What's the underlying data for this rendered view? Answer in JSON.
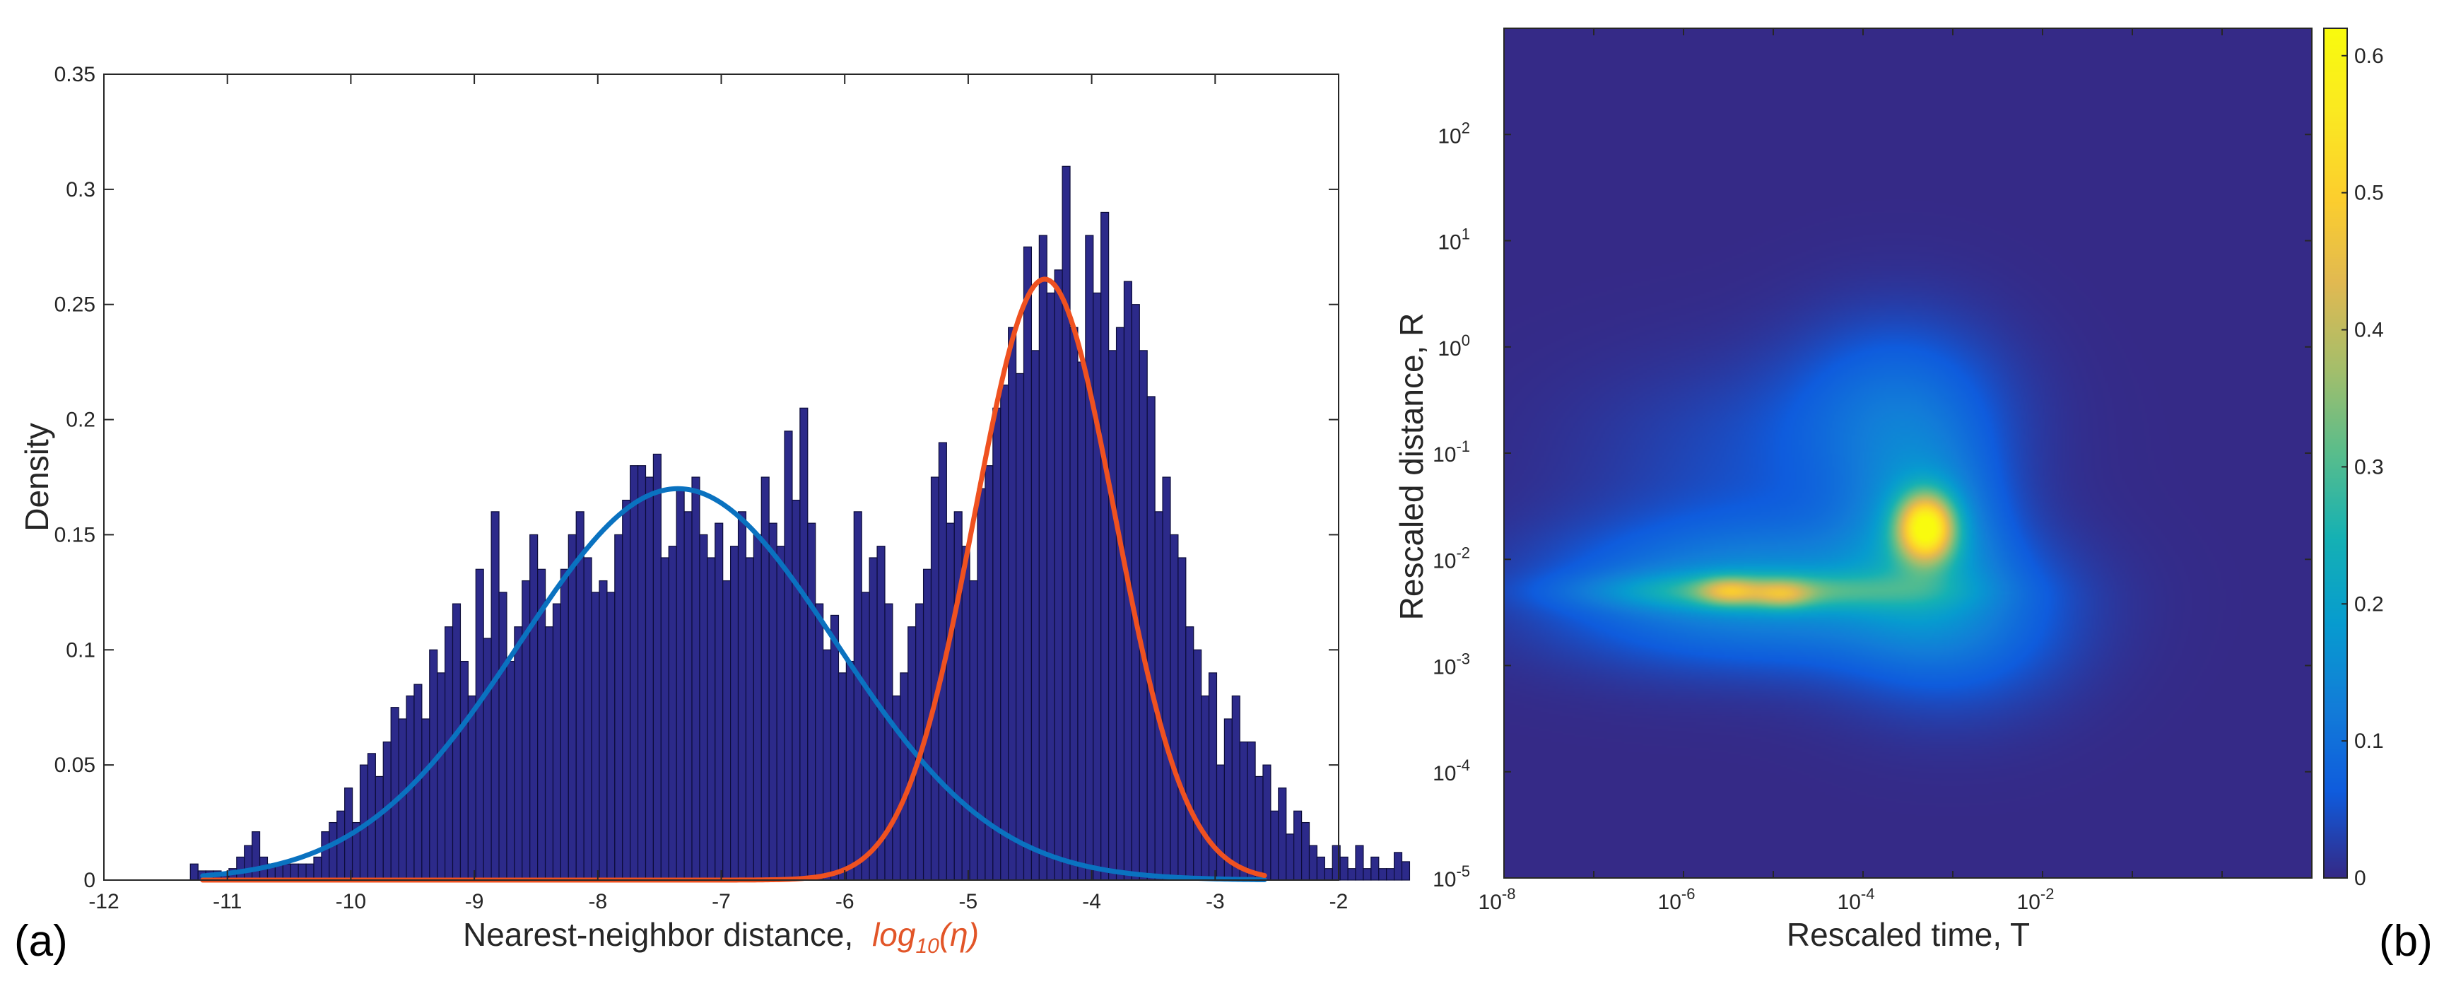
{
  "figure": {
    "panel_a_label": "(a)",
    "panel_b_label": "(b)"
  },
  "colors": {
    "bars_fill": "#2c2a8a",
    "bars_edge": "#0c0c3a",
    "fit_low": "#0a72c0",
    "fit_high": "#ef5120",
    "heatmap_bg": "#352a87"
  },
  "chart_data": [
    {
      "type": "bar",
      "title": "",
      "xlabel": "Nearest-neighbor distance, ",
      "xlabel_math": "log10(η)",
      "xlabel_math_base": "log",
      "xlabel_math_sub": "10",
      "xlabel_math_arg": "(η)",
      "ylabel": "Density",
      "xlim": [
        -12,
        -2
      ],
      "ylim": [
        0,
        0.35
      ],
      "xticks": [
        -12,
        -11,
        -10,
        -9,
        -8,
        -7,
        -6,
        -5,
        -4,
        -3,
        -2
      ],
      "xtick_labels": [
        "-12",
        "-11",
        "-10",
        "-9",
        "-8",
        "-7",
        "-6",
        "-5",
        "-4",
        "-3",
        "-2"
      ],
      "yticks": [
        0,
        0.05,
        0.1,
        0.15,
        0.2,
        0.25,
        0.3,
        0.35
      ],
      "ytick_labels": [
        "0",
        "0.05",
        "0.1",
        "0.15",
        "0.2",
        "0.25",
        "0.3",
        "0.35"
      ],
      "bin_start": -11.3,
      "bin_width": 0.0625,
      "values": [
        0.007,
        0.004,
        0.004,
        0.004,
        0.002,
        0.005,
        0.01,
        0.015,
        0.021,
        0.01,
        0.007,
        0.007,
        0.007,
        0.007,
        0.007,
        0.007,
        0.01,
        0.021,
        0.025,
        0.03,
        0.04,
        0.025,
        0.05,
        0.055,
        0.045,
        0.06,
        0.075,
        0.07,
        0.08,
        0.085,
        0.07,
        0.1,
        0.09,
        0.11,
        0.12,
        0.095,
        0.08,
        0.135,
        0.105,
        0.16,
        0.125,
        0.095,
        0.11,
        0.13,
        0.15,
        0.135,
        0.11,
        0.12,
        0.135,
        0.15,
        0.16,
        0.14,
        0.125,
        0.13,
        0.125,
        0.15,
        0.165,
        0.18,
        0.18,
        0.175,
        0.185,
        0.14,
        0.145,
        0.17,
        0.16,
        0.175,
        0.15,
        0.14,
        0.155,
        0.13,
        0.145,
        0.16,
        0.14,
        0.15,
        0.175,
        0.155,
        0.145,
        0.195,
        0.165,
        0.205,
        0.155,
        0.12,
        0.1,
        0.115,
        0.09,
        0.095,
        0.16,
        0.125,
        0.14,
        0.145,
        0.12,
        0.08,
        0.09,
        0.11,
        0.12,
        0.135,
        0.175,
        0.19,
        0.155,
        0.16,
        0.145,
        0.13,
        0.17,
        0.18,
        0.205,
        0.215,
        0.24,
        0.22,
        0.275,
        0.23,
        0.28,
        0.255,
        0.265,
        0.31,
        0.24,
        0.225,
        0.28,
        0.255,
        0.29,
        0.23,
        0.24,
        0.26,
        0.25,
        0.23,
        0.21,
        0.16,
        0.175,
        0.15,
        0.14,
        0.11,
        0.1,
        0.08,
        0.09,
        0.05,
        0.07,
        0.08,
        0.06,
        0.06,
        0.045,
        0.05,
        0.03,
        0.04,
        0.02,
        0.03,
        0.025,
        0.015,
        0.01,
        0.005,
        0.015,
        0.01,
        0.005,
        0.015,
        0.005,
        0.01,
        0.005,
        0.005,
        0.012,
        0.008
      ],
      "series": [
        {
          "name": "low-mode fit",
          "color": "#0a72c0",
          "mean": -7.35,
          "sd": 1.28,
          "peak": 0.17,
          "x_range": [
            -11.2,
            -2.6
          ]
        },
        {
          "name": "high-mode fit",
          "color": "#ef5120",
          "mean": -4.38,
          "sd": 0.57,
          "peak": 0.261,
          "x_range": [
            -11.2,
            -2.6
          ]
        }
      ]
    },
    {
      "type": "heatmap",
      "title": "",
      "xlabel": "Rescaled time, T",
      "ylabel": "Rescaled distance, R",
      "xscale": "log",
      "yscale": "log",
      "xlim_exp": [
        -8,
        1
      ],
      "ylim_exp": [
        -5,
        3
      ],
      "xtick_exps": [
        -8,
        -6,
        -4,
        -2
      ],
      "ytick_exps": [
        -5,
        -4,
        -3,
        -2,
        -1,
        0,
        1,
        2
      ],
      "tick_base": "10",
      "colormap": "parula",
      "colorbar": {
        "range": [
          0,
          0.62
        ],
        "ticks": [
          0,
          0.1,
          0.2,
          0.3,
          0.4,
          0.5,
          0.6
        ],
        "tick_labels": [
          "0",
          "0.1",
          "0.2",
          "0.3",
          "0.4",
          "0.5",
          "0.6"
        ]
      },
      "density_components": [
        {
          "logT": -3.3,
          "logR": -1.7,
          "sigma_logT": 0.22,
          "sigma_logR": 0.22,
          "amp": 0.45
        },
        {
          "logT": -3.3,
          "logR": -1.7,
          "sigma_logT": 0.55,
          "sigma_logR": 0.55,
          "amp": 0.14
        },
        {
          "logT": -5.5,
          "logR": -2.3,
          "sigma_logT": 0.22,
          "sigma_logR": 0.09,
          "amp": 0.16
        },
        {
          "logT": -4.9,
          "logR": -2.33,
          "sigma_logT": 0.22,
          "sigma_logR": 0.09,
          "amp": 0.14
        },
        {
          "logT": -5.2,
          "logR": -2.3,
          "sigma_logT": 1.2,
          "sigma_logR": 0.12,
          "amp": 0.17
        },
        {
          "logT": -5.2,
          "logR": -2.3,
          "sigma_logT": 1.5,
          "sigma_logR": 0.45,
          "amp": 0.16
        },
        {
          "logT": -3.6,
          "logR": -0.6,
          "sigma_logT": 0.8,
          "sigma_logR": 0.6,
          "amp": 0.09
        },
        {
          "logT": -3.0,
          "logR": -2.6,
          "sigma_logT": 0.9,
          "sigma_logR": 0.55,
          "amp": 0.09
        },
        {
          "logT": -5.0,
          "logR": -1.0,
          "sigma_logT": 1.4,
          "sigma_logR": 0.6,
          "amp": 0.04
        }
      ]
    }
  ]
}
